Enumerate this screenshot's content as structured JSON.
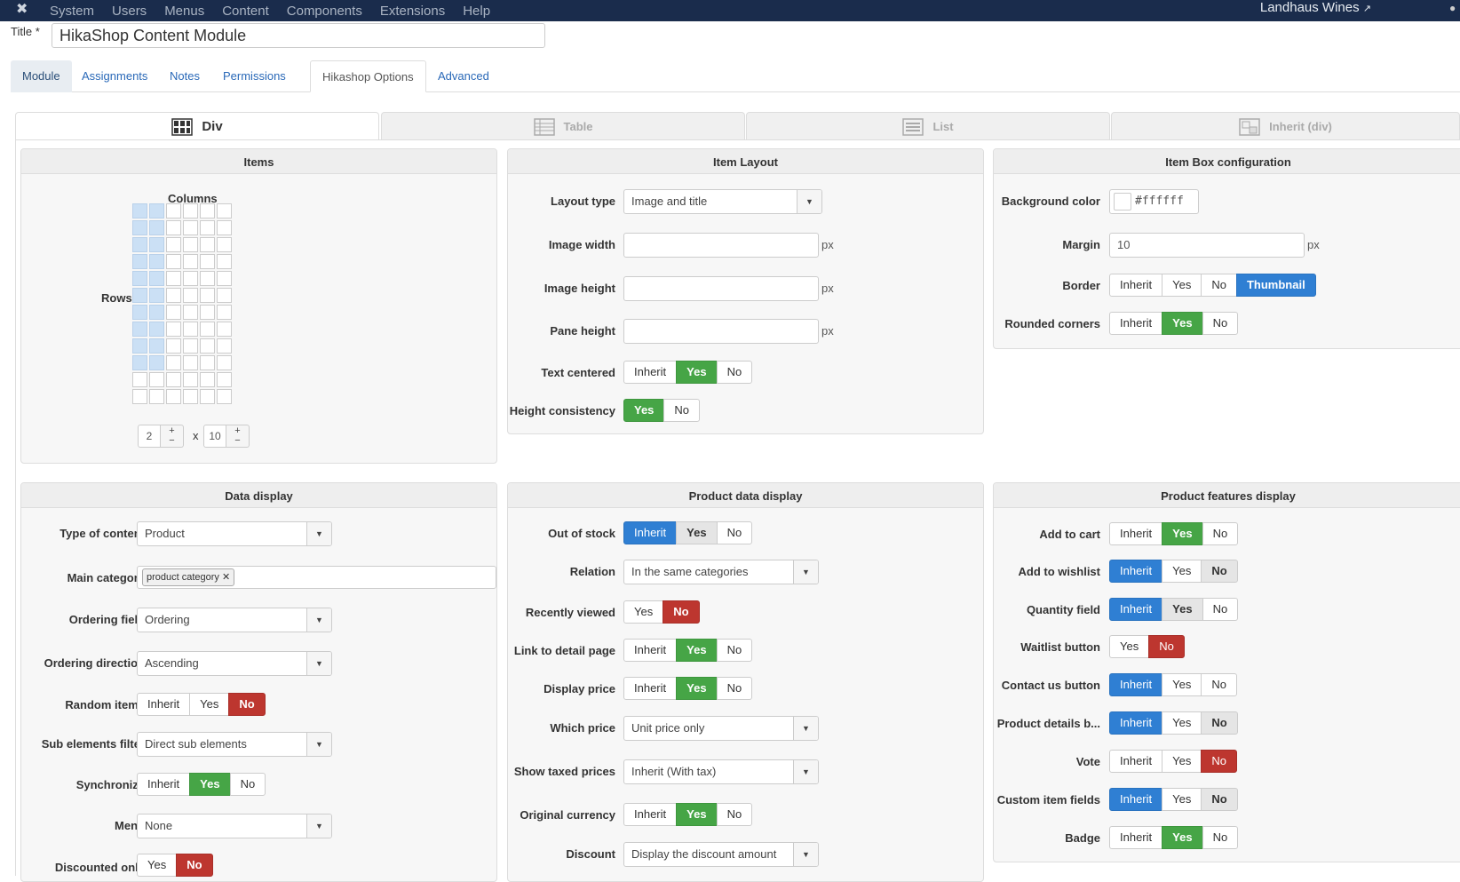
{
  "topbar": {
    "menu": [
      "System",
      "Users",
      "Menus",
      "Content",
      "Components",
      "Extensions",
      "Help"
    ],
    "site": "Landhaus Wines"
  },
  "title": {
    "label": "Title *",
    "value": "HikaShop Content Module"
  },
  "tabs": [
    "Module",
    "Assignments",
    "Notes",
    "Permissions",
    "Hikashop Options",
    "Advanced"
  ],
  "layout_tabs": [
    "Div",
    "Table",
    "List",
    "Inherit (div)"
  ],
  "items_panel": {
    "title": "Items",
    "columns_label": "Columns",
    "rows_label": "Rows",
    "columns_value": "2",
    "rows_value": "10",
    "times": "x",
    "plus": "+",
    "minus": "−"
  },
  "item_layout": {
    "title": "Item Layout",
    "layout_type_label": "Layout type",
    "layout_type": "Image and title",
    "image_width_label": "Image width",
    "image_height_label": "Image height",
    "pane_height_label": "Pane height",
    "px": "px",
    "text_centered_label": "Text centered",
    "height_consistency_label": "Height consistency"
  },
  "item_box": {
    "title": "Item Box configuration",
    "bg_label": "Background color",
    "bg_value": "#ffffff",
    "margin_label": "Margin",
    "margin_value": "10",
    "border_label": "Border",
    "rounded_label": "Rounded corners"
  },
  "btn": {
    "inherit": "Inherit",
    "yes": "Yes",
    "no": "No",
    "thumbnail": "Thumbnail"
  },
  "data_display": {
    "title": "Data display",
    "type_label": "Type of content",
    "type": "Product",
    "main_cat_label": "Main category",
    "main_cat_tag": "product category",
    "ordering_field_label": "Ordering field",
    "ordering_field": "Ordering",
    "ordering_dir_label": "Ordering direction",
    "ordering_dir": "Ascending",
    "random_label": "Random items",
    "sub_filter_label": "Sub elements filter",
    "sub_filter": "Direct sub elements",
    "sync_label": "Synchronize",
    "menu_label": "Menu",
    "menu": "None",
    "discounted_label": "Discounted only"
  },
  "product_data": {
    "title": "Product data display",
    "out_of_stock_label": "Out of stock",
    "relation_label": "Relation",
    "relation": "In the same categories",
    "recently_viewed_label": "Recently viewed",
    "link_detail_label": "Link to detail page",
    "display_price_label": "Display price",
    "which_price_label": "Which price",
    "which_price": "Unit price only",
    "taxed_label": "Show taxed prices",
    "taxed": "Inherit (With tax)",
    "orig_currency_label": "Original currency",
    "discount_label": "Discount",
    "discount": "Display the discount amount"
  },
  "features": {
    "title": "Product features display",
    "add_to_cart_label": "Add to cart",
    "wishlist_label": "Add to wishlist",
    "quantity_label": "Quantity field",
    "waitlist_label": "Waitlist button",
    "contact_label": "Contact us button",
    "details_label": "Product details b...",
    "vote_label": "Vote",
    "custom_fields_label": "Custom item fields",
    "badge_label": "Badge"
  }
}
